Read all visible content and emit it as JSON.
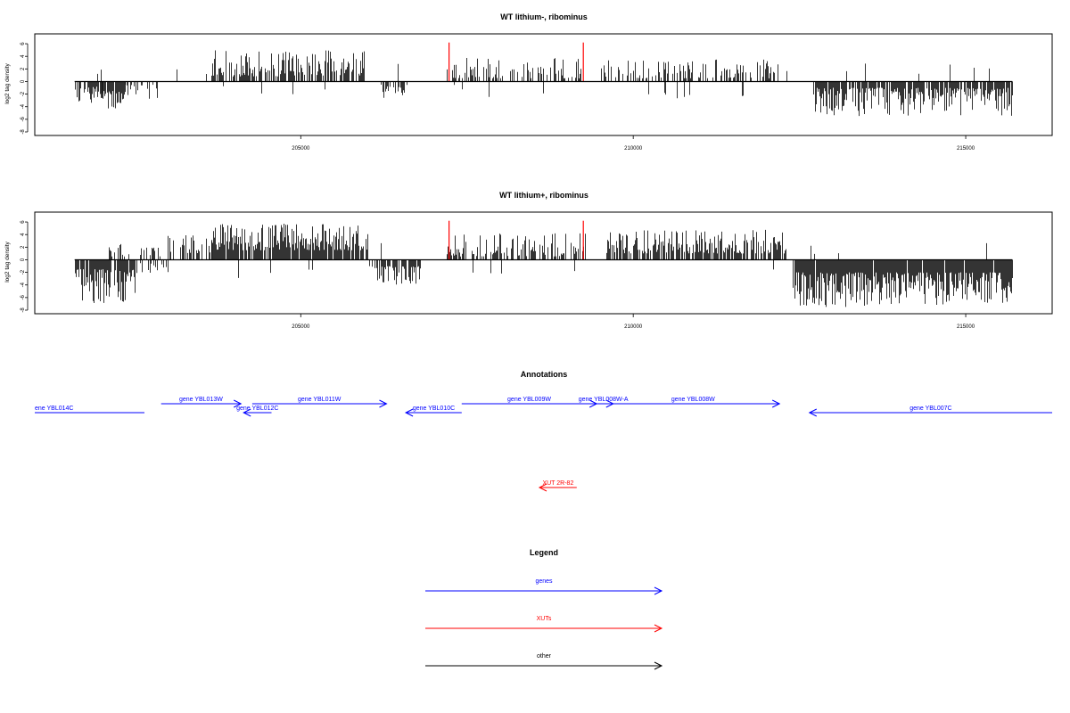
{
  "chart_data": [
    {
      "type": "bar",
      "title": "WT lithium-, ribominus",
      "ylabel": "log2 tag density",
      "xlabel": "",
      "xlim": [
        201000,
        216300
      ],
      "ylim": [
        -8,
        7
      ],
      "yticks": [
        -8,
        -6,
        -4,
        -2,
        0,
        2,
        4,
        6
      ],
      "xticks": [
        205000,
        210000,
        215000
      ],
      "xtick_labels": [
        "205000",
        "210000",
        "215000"
      ],
      "regions": [
        {
          "x": [
            201600,
            202000
          ],
          "sign": -1,
          "min": 0.8,
          "max": 4.0,
          "density": 0.75
        },
        {
          "x": [
            202000,
            202350
          ],
          "sign": -1,
          "min": 1.5,
          "max": 5.0,
          "density": 0.85
        },
        {
          "x": [
            202350,
            202900
          ],
          "sign": -1,
          "min": 0.5,
          "max": 3.0,
          "density": 0.35
        },
        {
          "x": [
            203000,
            203600
          ],
          "sign": 1,
          "min": 1.0,
          "max": 2.8,
          "density": 0.06
        },
        {
          "x": [
            203650,
            205950
          ],
          "sign": 1,
          "min": 0.8,
          "max": 5.0,
          "density": 0.72
        },
        {
          "x": [
            206050,
            206600
          ],
          "sign": -1,
          "min": 0.5,
          "max": 3.5,
          "density": 0.3
        },
        {
          "x": [
            207200,
            209200
          ],
          "sign": 1,
          "min": 0.5,
          "max": 4.0,
          "density": 0.45
        },
        {
          "x": [
            209500,
            212300
          ],
          "sign": 1,
          "min": 0.5,
          "max": 3.5,
          "density": 0.4
        },
        {
          "x": [
            212700,
            215700
          ],
          "sign": -1,
          "min": 1.0,
          "max": 5.5,
          "density": 0.82
        }
      ],
      "highlights": [
        {
          "x": 207230,
          "y": 6.2,
          "color": "#ff0000"
        },
        {
          "x": 209250,
          "y": 6.2,
          "color": "#ff0000"
        }
      ]
    },
    {
      "type": "bar",
      "title": "WT lithium+, ribominus",
      "ylabel": "log2 tag density",
      "xlabel": "",
      "xlim": [
        201000,
        216300
      ],
      "ylim": [
        -8,
        7
      ],
      "yticks": [
        -8,
        -6,
        -4,
        -2,
        0,
        2,
        4,
        6
      ],
      "xticks": [
        205000,
        210000,
        215000
      ],
      "xtick_labels": [
        "205000",
        "210000",
        "215000"
      ],
      "regions": [
        {
          "x": [
            201600,
            202500
          ],
          "sign": -1,
          "min": 1.5,
          "max": 7.0,
          "density": 0.9
        },
        {
          "x": [
            202100,
            202900
          ],
          "sign": 1,
          "min": 0.5,
          "max": 2.0,
          "density": 0.25
        },
        {
          "x": [
            202500,
            203100
          ],
          "sign": -1,
          "min": 0.5,
          "max": 2.5,
          "density": 0.3
        },
        {
          "x": [
            203000,
            203650
          ],
          "sign": 1,
          "min": 1.0,
          "max": 4.0,
          "density": 0.45
        },
        {
          "x": [
            203650,
            206000
          ],
          "sign": 1,
          "min": 1.5,
          "max": 5.8,
          "density": 0.9
        },
        {
          "x": [
            206000,
            206800
          ],
          "sign": -1,
          "min": 1.0,
          "max": 4.0,
          "density": 0.6
        },
        {
          "x": [
            207200,
            209300
          ],
          "sign": 1,
          "min": 0.5,
          "max": 4.2,
          "density": 0.55
        },
        {
          "x": [
            209600,
            212300
          ],
          "sign": 1,
          "min": 1.0,
          "max": 4.8,
          "density": 0.75
        },
        {
          "x": [
            212400,
            215700
          ],
          "sign": -1,
          "min": 2.0,
          "max": 7.5,
          "density": 0.95
        }
      ],
      "highlights": [
        {
          "x": 207230,
          "y": 6.2,
          "color": "#ff0000"
        },
        {
          "x": 209250,
          "y": 6.2,
          "color": "#ff0000"
        }
      ]
    }
  ],
  "annotations": {
    "title": "Annotations",
    "features": [
      {
        "label": "ene YBL014C",
        "type": "gene",
        "strand": "-",
        "start": 201000,
        "end": 202650,
        "row": 2
      },
      {
        "label": "gene YBL013W",
        "type": "gene",
        "strand": "+",
        "start": 202900,
        "end": 204100,
        "row": 1
      },
      {
        "label": "gene YBL012C",
        "type": "gene",
        "strand": "-",
        "start": 204140,
        "end": 204560,
        "row": 2
      },
      {
        "label": "gene YBL011W",
        "type": "gene",
        "strand": "+",
        "start": 204270,
        "end": 206290,
        "row": 1
      },
      {
        "label": "gene YBL010C",
        "type": "gene",
        "strand": "-",
        "start": 206580,
        "end": 207420,
        "row": 2
      },
      {
        "label": "gene YBL009W",
        "type": "gene",
        "strand": "+",
        "start": 207420,
        "end": 209450,
        "row": 1
      },
      {
        "label": "gene YBL008W-A",
        "type": "gene",
        "strand": "+",
        "start": 209400,
        "end": 209700,
        "row": 1
      },
      {
        "label": "gene YBL008W",
        "type": "gene",
        "strand": "+",
        "start": 209600,
        "end": 212200,
        "row": 1
      },
      {
        "label": "gene YBL007C",
        "type": "gene",
        "strand": "-",
        "start": 212650,
        "end": 216300,
        "row": 2
      },
      {
        "label": "XUT 2R-82",
        "type": "XUT",
        "strand": "-",
        "start": 208590,
        "end": 209150,
        "row": 3
      }
    ]
  },
  "legend": {
    "title": "Legend",
    "items": [
      {
        "label": "genes",
        "color": "#0000ff"
      },
      {
        "label": "XUTs",
        "color": "#ff0000"
      },
      {
        "label": "other",
        "color": "#000000"
      }
    ]
  },
  "colors": {
    "gene": "#0000ff",
    "XUT": "#ff0000",
    "other": "#000000",
    "signal": "#000000"
  }
}
